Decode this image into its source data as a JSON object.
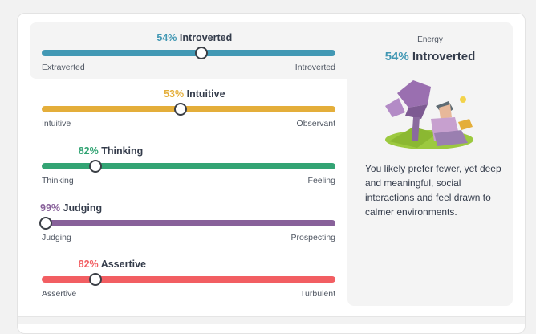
{
  "traits": [
    {
      "pct": "54%",
      "name": "Introverted",
      "value": 54,
      "knob_fraction": 0.54,
      "left": "Extraverted",
      "right": "Introverted",
      "color": "#4298b4"
    },
    {
      "pct": "53%",
      "name": "Intuitive",
      "value": 53,
      "knob_fraction": 0.47,
      "left": "Intuitive",
      "right": "Observant",
      "color": "#e4ae3a"
    },
    {
      "pct": "82%",
      "name": "Thinking",
      "value": 82,
      "knob_fraction": 0.18,
      "left": "Thinking",
      "right": "Feeling",
      "color": "#33a474"
    },
    {
      "pct": "99%",
      "name": "Judging",
      "value": 99,
      "knob_fraction": 0.01,
      "left": "Judging",
      "right": "Prospecting",
      "color": "#88619a"
    },
    {
      "pct": "82%",
      "name": "Assertive",
      "value": 82,
      "knob_fraction": 0.18,
      "left": "Assertive",
      "right": "Turbulent",
      "color": "#f25e62"
    }
  ],
  "side": {
    "label": "Energy",
    "pct": "54%",
    "title": "Introverted",
    "description": "You likely prefer fewer, yet deep and meaningful, social interactions and feel drawn to calmer environments.",
    "illustration_icon": "introvert-person-illustration-icon"
  }
}
